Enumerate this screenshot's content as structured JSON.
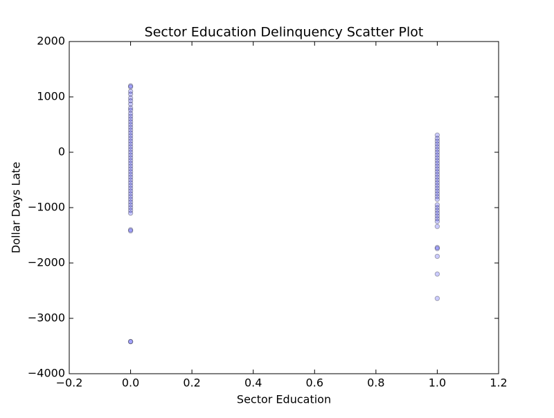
{
  "chart_data": {
    "type": "scatter",
    "title": "Sector Education Delinquency Scatter Plot",
    "x_label": "Sector Education",
    "y_label": "Dollar Days Late",
    "xlim": [
      -0.2,
      1.2
    ],
    "ylim": [
      -4000,
      2000
    ],
    "xticks": [
      {
        "value": -0.2,
        "label": "−0.2"
      },
      {
        "value": 0,
        "label": "0.0"
      },
      {
        "value": 0.2,
        "label": "0.2"
      },
      {
        "value": 0.4,
        "label": "0.4"
      },
      {
        "value": 0.6,
        "label": "0.6"
      },
      {
        "value": 0.8,
        "label": "0.8"
      },
      {
        "value": 1,
        "label": "1.0"
      },
      {
        "value": 1.2,
        "label": "1.2"
      }
    ],
    "yticks": [
      {
        "value": -4000,
        "label": "−4000"
      },
      {
        "value": -3000,
        "label": "−3000"
      },
      {
        "value": -2000,
        "label": "−2000"
      },
      {
        "value": -1000,
        "label": "−1000"
      },
      0,
      1000,
      2000
    ],
    "color": "#0000ff",
    "alpha": 0.2,
    "grid": false,
    "x": [
      0,
      0,
      0,
      0,
      0,
      0,
      0,
      0,
      0,
      0,
      0,
      0,
      0,
      0,
      0,
      0,
      0,
      0,
      0,
      0,
      0,
      0,
      0,
      0,
      0,
      0,
      0,
      0,
      0,
      0,
      0,
      0,
      0,
      0,
      0,
      0,
      0,
      0,
      0,
      0,
      0,
      0,
      0,
      0,
      0,
      0,
      0,
      0,
      0,
      0,
      1,
      1,
      1,
      1,
      1,
      1,
      1,
      1,
      1,
      1,
      1,
      1,
      1,
      1,
      1,
      1,
      1,
      1,
      1,
      1,
      1,
      1,
      1,
      1,
      1,
      1,
      1,
      1,
      1,
      1,
      1,
      1,
      1,
      1,
      1,
      1,
      1
    ],
    "values": [
      1200,
      1180,
      1100,
      1050,
      980,
      930,
      870,
      800,
      760,
      700,
      650,
      600,
      550,
      500,
      450,
      400,
      350,
      300,
      250,
      200,
      150,
      100,
      50,
      0,
      -50,
      -100,
      -150,
      -200,
      -250,
      -300,
      -350,
      -400,
      -450,
      -500,
      -550,
      -600,
      -650,
      -700,
      -750,
      -800,
      -850,
      -900,
      -950,
      -1000,
      -1050,
      -1100,
      -1400,
      -1420,
      -3420,
      -3420,
      310,
      250,
      200,
      150,
      100,
      50,
      0,
      -50,
      -100,
      -150,
      -200,
      -250,
      -300,
      -350,
      -400,
      -450,
      -500,
      -550,
      -600,
      -650,
      -700,
      -750,
      -800,
      -850,
      -950,
      -1000,
      -1050,
      -1100,
      -1150,
      -1200,
      -1250,
      -1340,
      -1720,
      -1740,
      -1880,
      -2200,
      -2640
    ]
  }
}
